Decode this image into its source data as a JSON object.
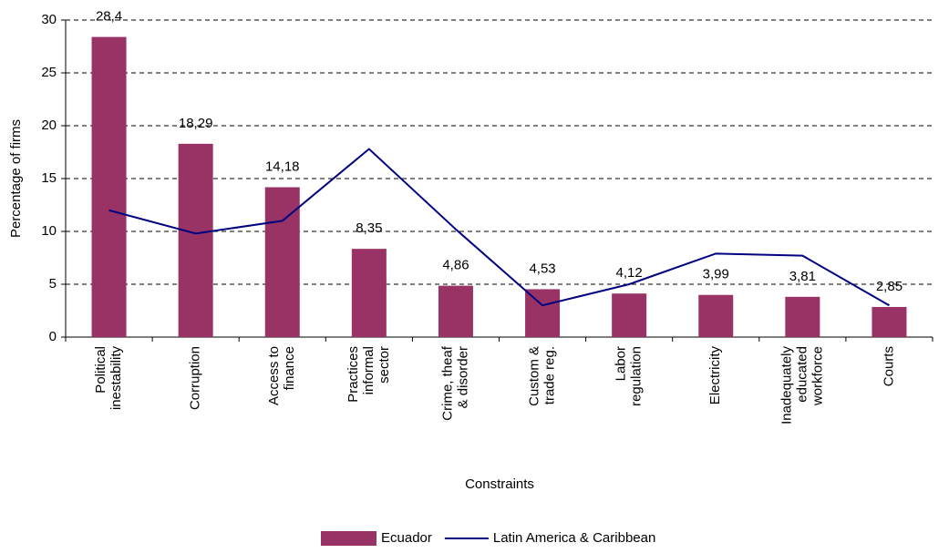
{
  "chart_data": {
    "type": "bar",
    "x_label": "Constraints",
    "y_label": "Percentage of firms",
    "categories": [
      [
        "Political",
        "inestability"
      ],
      [
        "Corruption"
      ],
      [
        "Access to",
        "finance"
      ],
      [
        "Practices",
        "informal",
        "sector"
      ],
      [
        "Crime, theaf",
        "& disorder"
      ],
      [
        "Custom &",
        "trade reg."
      ],
      [
        "Labor",
        "regulation"
      ],
      [
        "Electricity"
      ],
      [
        "Inadequately",
        "educated",
        "workforce"
      ],
      [
        "Courts"
      ]
    ],
    "series": [
      {
        "name": "Ecuador",
        "type": "bar",
        "color": "#993366",
        "values": [
          28.4,
          18.29,
          14.18,
          8.35,
          4.86,
          4.53,
          4.12,
          3.99,
          3.81,
          2.85
        ],
        "value_labels": [
          "28,4",
          "18,29",
          "14,18",
          "8,35",
          "4,86",
          "4,53",
          "4,12",
          "3,99",
          "3,81",
          "2,85"
        ]
      },
      {
        "name": "Latin America & Caribbean",
        "type": "line",
        "color": "#000080",
        "values": [
          12,
          9.8,
          11,
          17.8,
          10.2,
          3,
          5,
          7.9,
          7.7,
          3
        ]
      }
    ],
    "ylim": [
      0,
      30
    ],
    "yticks": [
      0,
      5,
      10,
      15,
      20,
      25,
      30
    ],
    "grid": true,
    "legend": "bottom"
  }
}
